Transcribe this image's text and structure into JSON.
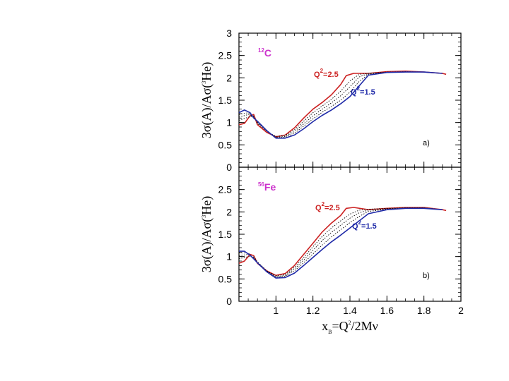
{
  "chart_data": [
    {
      "type": "line",
      "panel_label": "a)",
      "nucleus": {
        "mass_number": "12",
        "symbol": "C"
      },
      "ylabel": {
        "prefix": "3σ(A)/Aσ(",
        "sup": "3",
        "suffix": "He)"
      },
      "xlabel": "",
      "xlim": [
        0.8,
        2.0
      ],
      "ylim": [
        0,
        3
      ],
      "yticks": [
        "0",
        "0.5",
        "1",
        "1.5",
        "2",
        "2.5",
        "3"
      ],
      "xticks": [],
      "annotations": [
        {
          "name": "q2-high",
          "prefix": "Q",
          "sup": "2",
          "suffix": "=2.5",
          "color": "#cc2222"
        },
        {
          "name": "q2-low",
          "prefix": "Q",
          "sup": "2",
          "suffix": "=1.5",
          "color": "#1f2aa8"
        }
      ],
      "series": [
        {
          "name": "Q2=2.5",
          "style": "solid",
          "color": "#cc2222",
          "x": [
            0.8,
            0.83,
            0.86,
            0.88,
            0.9,
            0.95,
            1.0,
            1.05,
            1.1,
            1.15,
            1.2,
            1.25,
            1.3,
            1.35,
            1.38,
            1.42,
            1.5,
            1.6,
            1.7,
            1.8,
            1.9,
            1.92
          ],
          "y": [
            0.95,
            0.98,
            1.15,
            1.18,
            0.95,
            0.78,
            0.68,
            0.72,
            0.88,
            1.1,
            1.3,
            1.45,
            1.62,
            1.85,
            2.05,
            2.1,
            2.1,
            2.14,
            2.15,
            2.13,
            2.1,
            2.08
          ]
        },
        {
          "name": "Q2=2.25",
          "style": "dotted",
          "color": "#000000",
          "x": [
            0.8,
            0.85,
            0.88,
            0.9,
            0.95,
            1.0,
            1.05,
            1.1,
            1.15,
            1.2,
            1.25,
            1.3,
            1.35,
            1.4,
            1.45,
            1.5,
            1.6,
            1.7,
            1.8,
            1.9
          ],
          "y": [
            1.05,
            1.12,
            1.15,
            0.98,
            0.8,
            0.69,
            0.71,
            0.84,
            1.03,
            1.22,
            1.37,
            1.52,
            1.7,
            1.93,
            2.08,
            2.1,
            2.13,
            2.14,
            2.13,
            2.1
          ]
        },
        {
          "name": "Q2=2.0",
          "style": "dotted",
          "color": "#000000",
          "x": [
            0.8,
            0.85,
            0.88,
            0.9,
            0.95,
            1.0,
            1.05,
            1.1,
            1.15,
            1.2,
            1.25,
            1.3,
            1.35,
            1.4,
            1.45,
            1.5,
            1.6,
            1.7,
            1.8,
            1.9
          ],
          "y": [
            1.12,
            1.18,
            1.13,
            1.0,
            0.81,
            0.67,
            0.69,
            0.8,
            0.97,
            1.15,
            1.3,
            1.44,
            1.6,
            1.8,
            2.02,
            2.1,
            2.12,
            2.13,
            2.13,
            2.1
          ]
        },
        {
          "name": "Q2=1.75",
          "style": "dotted",
          "color": "#000000",
          "x": [
            0.8,
            0.85,
            0.88,
            0.9,
            0.95,
            1.0,
            1.05,
            1.1,
            1.15,
            1.2,
            1.25,
            1.3,
            1.35,
            1.4,
            1.45,
            1.5,
            1.6,
            1.7,
            1.8,
            1.9
          ],
          "y": [
            1.18,
            1.22,
            1.12,
            1.02,
            0.82,
            0.66,
            0.67,
            0.76,
            0.92,
            1.08,
            1.23,
            1.36,
            1.5,
            1.68,
            1.92,
            2.08,
            2.12,
            2.13,
            2.13,
            2.1
          ]
        },
        {
          "name": "Q2=1.5",
          "style": "solid",
          "color": "#1f2aa8",
          "x": [
            0.8,
            0.83,
            0.86,
            0.88,
            0.9,
            0.95,
            1.0,
            1.05,
            1.1,
            1.15,
            1.2,
            1.25,
            1.3,
            1.35,
            1.4,
            1.45,
            1.5,
            1.6,
            1.7,
            1.8,
            1.9
          ],
          "y": [
            1.22,
            1.28,
            1.22,
            1.1,
            1.03,
            0.82,
            0.65,
            0.65,
            0.72,
            0.86,
            1.02,
            1.16,
            1.28,
            1.42,
            1.58,
            1.82,
            2.06,
            2.12,
            2.13,
            2.13,
            2.1
          ]
        }
      ]
    },
    {
      "type": "line",
      "panel_label": "b)",
      "nucleus": {
        "mass_number": "56",
        "symbol": "Fe"
      },
      "ylabel": {
        "prefix": "3σ(A)/Aσ(",
        "sup": "3",
        "suffix": "He)"
      },
      "xlabel": {
        "prefix": "x",
        "sub": "B",
        "middle": "=Q",
        "sup": "2",
        "suffix": "/2Mν"
      },
      "xlim": [
        0.8,
        2.0
      ],
      "ylim": [
        0,
        3
      ],
      "yticks": [
        "0",
        "0.5",
        "1",
        "1.5",
        "2",
        "2.5"
      ],
      "xticks": [
        "1",
        "1.2",
        "1.4",
        "1.6",
        "1.8",
        "2"
      ],
      "annotations": [
        {
          "name": "q2-high",
          "prefix": "Q",
          "sup": "2",
          "suffix": "=2.5",
          "color": "#cc2222"
        },
        {
          "name": "q2-low",
          "prefix": "Q",
          "sup": "2",
          "suffix": "=1.5",
          "color": "#1f2aa8"
        }
      ],
      "series": [
        {
          "name": "Q2=2.5",
          "style": "solid",
          "color": "#cc2222",
          "x": [
            0.8,
            0.83,
            0.86,
            0.88,
            0.9,
            0.95,
            1.0,
            1.05,
            1.1,
            1.15,
            1.2,
            1.25,
            1.3,
            1.35,
            1.38,
            1.42,
            1.5,
            1.6,
            1.7,
            1.8,
            1.9,
            1.92
          ],
          "y": [
            0.85,
            0.9,
            1.05,
            1.02,
            0.85,
            0.68,
            0.58,
            0.62,
            0.8,
            1.05,
            1.3,
            1.55,
            1.75,
            1.92,
            2.08,
            2.1,
            2.05,
            2.08,
            2.1,
            2.1,
            2.05,
            2.03
          ]
        },
        {
          "name": "Q2=2.25",
          "style": "dotted",
          "color": "#000000",
          "x": [
            0.8,
            0.85,
            0.88,
            0.9,
            0.95,
            1.0,
            1.05,
            1.1,
            1.15,
            1.2,
            1.25,
            1.3,
            1.35,
            1.4,
            1.45,
            1.5,
            1.6,
            1.7,
            1.8,
            1.9
          ],
          "y": [
            0.95,
            1.0,
            1.0,
            0.88,
            0.68,
            0.57,
            0.6,
            0.76,
            0.98,
            1.22,
            1.45,
            1.64,
            1.8,
            1.95,
            2.04,
            2.06,
            2.08,
            2.09,
            2.09,
            2.05
          ]
        },
        {
          "name": "Q2=2.0",
          "style": "dotted",
          "color": "#000000",
          "x": [
            0.8,
            0.85,
            0.88,
            0.9,
            0.95,
            1.0,
            1.05,
            1.1,
            1.15,
            1.2,
            1.25,
            1.3,
            1.35,
            1.4,
            1.45,
            1.5,
            1.6,
            1.7,
            1.8,
            1.9
          ],
          "y": [
            1.02,
            1.05,
            0.98,
            0.88,
            0.68,
            0.55,
            0.58,
            0.72,
            0.92,
            1.14,
            1.36,
            1.54,
            1.7,
            1.86,
            1.98,
            2.04,
            2.07,
            2.09,
            2.09,
            2.05
          ]
        },
        {
          "name": "Q2=1.75",
          "style": "dotted",
          "color": "#000000",
          "x": [
            0.8,
            0.85,
            0.88,
            0.9,
            0.95,
            1.0,
            1.05,
            1.1,
            1.15,
            1.2,
            1.25,
            1.3,
            1.35,
            1.4,
            1.45,
            1.5,
            1.6,
            1.7,
            1.8,
            1.9
          ],
          "y": [
            1.08,
            1.08,
            0.96,
            0.87,
            0.67,
            0.54,
            0.56,
            0.68,
            0.86,
            1.06,
            1.26,
            1.44,
            1.6,
            1.76,
            1.9,
            2.01,
            2.06,
            2.09,
            2.09,
            2.05
          ]
        },
        {
          "name": "Q2=1.5",
          "style": "solid",
          "color": "#1f2aa8",
          "x": [
            0.8,
            0.83,
            0.86,
            0.88,
            0.9,
            0.95,
            1.0,
            1.05,
            1.1,
            1.15,
            1.2,
            1.25,
            1.3,
            1.35,
            1.4,
            1.45,
            1.5,
            1.6,
            1.7,
            1.8,
            1.9
          ],
          "y": [
            1.12,
            1.12,
            1.03,
            0.95,
            0.86,
            0.66,
            0.52,
            0.53,
            0.63,
            0.8,
            0.98,
            1.16,
            1.33,
            1.48,
            1.64,
            1.8,
            1.96,
            2.05,
            2.08,
            2.08,
            2.05
          ]
        }
      ]
    }
  ]
}
